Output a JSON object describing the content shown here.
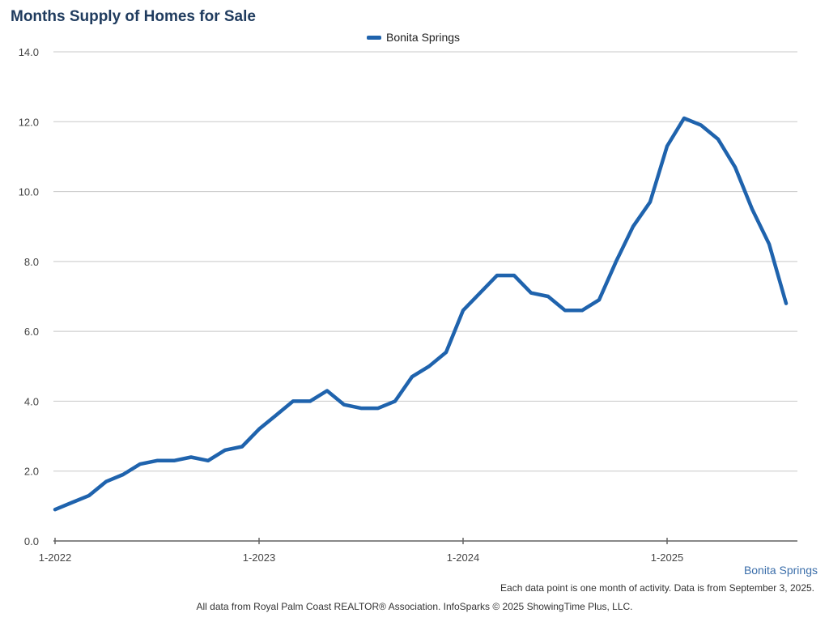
{
  "title": "Months Supply of Homes for Sale",
  "legend": {
    "label": "Bonita Springs",
    "color": "#1f63ad"
  },
  "series_label": "Bonita Springs",
  "notes": {
    "data_point": "Each data point is one month of activity. Data is from September 3, 2025.",
    "source": "All data from Royal Palm Coast REALTOR® Association. InfoSparks © 2025 ShowingTime Plus, LLC."
  },
  "chart_data": {
    "type": "line",
    "title": "Months Supply of Homes for Sale",
    "xlabel": "",
    "ylabel": "",
    "ylim": [
      0,
      14
    ],
    "yticks": [
      "0.0",
      "2.0",
      "4.0",
      "6.0",
      "8.0",
      "10.0",
      "12.0",
      "14.0"
    ],
    "xticks": [
      "1-2022",
      "1-2023",
      "1-2024",
      "1-2025"
    ],
    "grid": true,
    "legend_position": "top-center",
    "x_start": "2022-01",
    "series": [
      {
        "name": "Bonita Springs",
        "color": "#1f63ad",
        "x": [
          "2022-01",
          "2022-02",
          "2022-03",
          "2022-04",
          "2022-05",
          "2022-06",
          "2022-07",
          "2022-08",
          "2022-09",
          "2022-10",
          "2022-11",
          "2022-12",
          "2023-01",
          "2023-02",
          "2023-03",
          "2023-04",
          "2023-05",
          "2023-06",
          "2023-07",
          "2023-08",
          "2023-09",
          "2023-10",
          "2023-11",
          "2023-12",
          "2024-01",
          "2024-02",
          "2024-03",
          "2024-04",
          "2024-05",
          "2024-06",
          "2024-07",
          "2024-08",
          "2024-09",
          "2024-10",
          "2024-11",
          "2024-12",
          "2025-01",
          "2025-02",
          "2025-03",
          "2025-04",
          "2025-05",
          "2025-06",
          "2025-07",
          "2025-08"
        ],
        "values": [
          0.9,
          1.1,
          1.3,
          1.7,
          1.9,
          2.2,
          2.3,
          2.3,
          2.4,
          2.3,
          2.6,
          2.7,
          3.2,
          3.6,
          4.0,
          4.0,
          4.3,
          3.9,
          3.8,
          3.8,
          4.0,
          4.7,
          5.0,
          5.4,
          6.6,
          7.1,
          7.6,
          7.6,
          7.1,
          7.0,
          6.6,
          6.6,
          6.9,
          8.0,
          9.0,
          9.7,
          11.3,
          12.1,
          11.9,
          11.5,
          10.7,
          9.5,
          8.5,
          6.8
        ]
      }
    ]
  }
}
